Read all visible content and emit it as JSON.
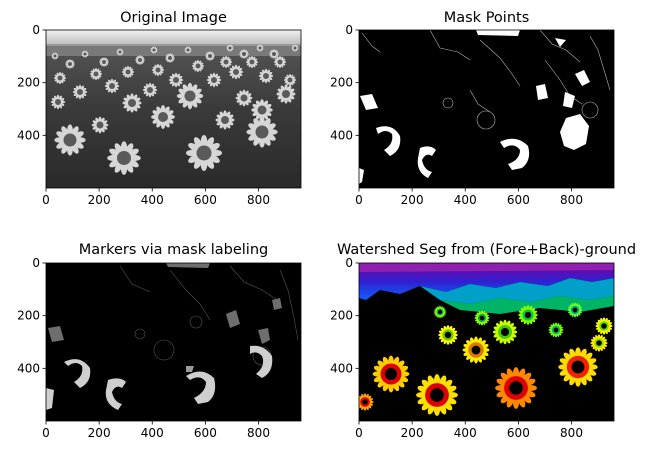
{
  "chart_data": [
    {
      "type": "image",
      "title": "Original Image",
      "xticks": [
        "0",
        "200",
        "400",
        "600",
        "800"
      ],
      "yticks": [
        "0",
        "200",
        "400"
      ],
      "xlim": [
        0,
        960
      ],
      "ylim": [
        600,
        0
      ],
      "colormap": "gray",
      "content": "grayscale sunflower field"
    },
    {
      "type": "image",
      "title": "Mask Points",
      "xticks": [
        "0",
        "200",
        "400",
        "600",
        "800"
      ],
      "yticks": [
        "0",
        "200",
        "400"
      ],
      "xlim": [
        0,
        960
      ],
      "ylim": [
        600,
        0
      ],
      "colormap": "binary",
      "content": "white mask points on black"
    },
    {
      "type": "image",
      "title": "Markers via mask labeling",
      "xticks": [
        "0",
        "200",
        "400",
        "600",
        "800"
      ],
      "yticks": [
        "0",
        "200",
        "400"
      ],
      "xlim": [
        0,
        960
      ],
      "ylim": [
        600,
        0
      ],
      "colormap": "gray",
      "content": "labeled marker regions"
    },
    {
      "type": "image",
      "title": "Watershed Seg from (Fore+Back)-ground",
      "xticks": [
        "0",
        "200",
        "400",
        "600",
        "800"
      ],
      "yticks": [
        "0",
        "200",
        "400"
      ],
      "xlim": [
        0,
        960
      ],
      "ylim": [
        600,
        0
      ],
      "colormap": "nipy_spectral",
      "content": "watershed segmentation labels"
    }
  ]
}
